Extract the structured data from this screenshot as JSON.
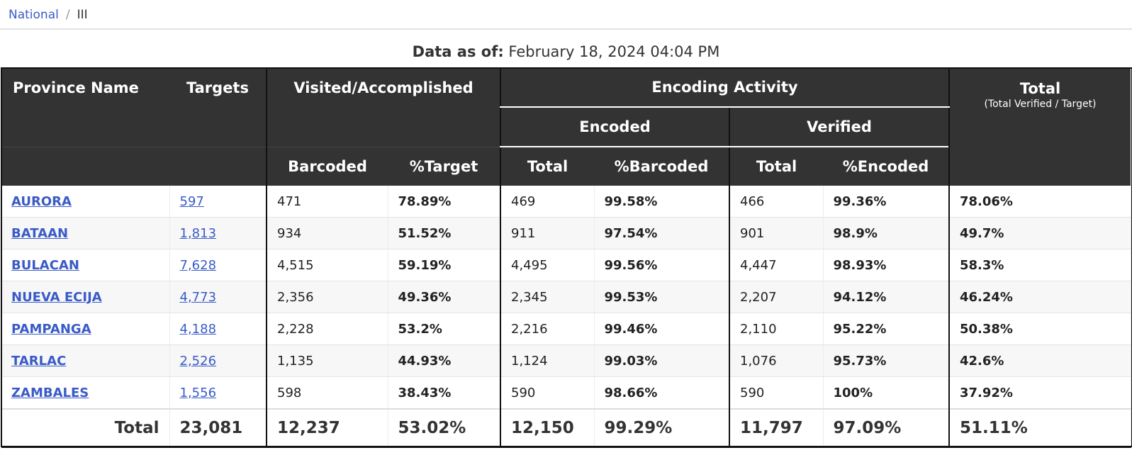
{
  "breadcrumb": {
    "home": "National",
    "separator": "/",
    "current": "III"
  },
  "as_of": {
    "label": "Data as of:",
    "value": "February 18, 2024 04:04 PM"
  },
  "headers": {
    "province": "Province Name",
    "targets": "Targets",
    "visited": "Visited/Accomplished",
    "encoding": "Encoding Activity",
    "total": "Total",
    "total_sub": "(Total Verified / Target)",
    "encoded": "Encoded",
    "verified": "Verified",
    "barcoded": "Barcoded",
    "pct_target": "%Target",
    "enc_total": "Total",
    "pct_barcoded": "%Barcoded",
    "ver_total": "Total",
    "pct_encoded": "%Encoded"
  },
  "rows": [
    {
      "province": "AURORA",
      "targets": "597",
      "barcoded": "471",
      "pct_target": "78.89%",
      "encoded": "469",
      "pct_barcoded": "99.58%",
      "verified": "466",
      "pct_encoded": "99.36%",
      "total": "78.06%"
    },
    {
      "province": "BATAAN",
      "targets": "1,813",
      "barcoded": "934",
      "pct_target": "51.52%",
      "encoded": "911",
      "pct_barcoded": "97.54%",
      "verified": "901",
      "pct_encoded": "98.9%",
      "total": "49.7%"
    },
    {
      "province": "BULACAN",
      "targets": "7,628",
      "barcoded": "4,515",
      "pct_target": "59.19%",
      "encoded": "4,495",
      "pct_barcoded": "99.56%",
      "verified": "4,447",
      "pct_encoded": "98.93%",
      "total": "58.3%"
    },
    {
      "province": "NUEVA ECIJA",
      "targets": "4,773",
      "barcoded": "2,356",
      "pct_target": "49.36%",
      "encoded": "2,345",
      "pct_barcoded": "99.53%",
      "verified": "2,207",
      "pct_encoded": "94.12%",
      "total": "46.24%"
    },
    {
      "province": "PAMPANGA",
      "targets": "4,188",
      "barcoded": "2,228",
      "pct_target": "53.2%",
      "encoded": "2,216",
      "pct_barcoded": "99.46%",
      "verified": "2,110",
      "pct_encoded": "95.22%",
      "total": "50.38%"
    },
    {
      "province": "TARLAC",
      "targets": "2,526",
      "barcoded": "1,135",
      "pct_target": "44.93%",
      "encoded": "1,124",
      "pct_barcoded": "99.03%",
      "verified": "1,076",
      "pct_encoded": "95.73%",
      "total": "42.6%"
    },
    {
      "province": "ZAMBALES",
      "targets": "1,556",
      "barcoded": "598",
      "pct_target": "38.43%",
      "encoded": "590",
      "pct_barcoded": "98.66%",
      "verified": "590",
      "pct_encoded": "100%",
      "total": "37.92%"
    }
  ],
  "totals": {
    "label": "Total",
    "targets": "23,081",
    "barcoded": "12,237",
    "pct_target": "53.02%",
    "encoded": "12,150",
    "pct_barcoded": "99.29%",
    "verified": "11,797",
    "pct_encoded": "97.09%",
    "total": "51.11%"
  }
}
